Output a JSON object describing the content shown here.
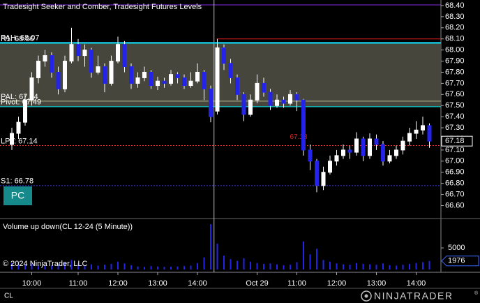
{
  "chart_data": {
    "type": "candlestick",
    "title": "Tradesight Seeker and Comber, Tradesight Futures Levels",
    "volume_title": "Volume up down(CL 12-24 (5 Minute))",
    "copyright": "© 2024 NinjaTrader, LLC",
    "button": "PC",
    "instrument": "CL",
    "brand": "NINJATRADER",
    "brand_mark": "®",
    "categories": [
      null,
      null,
      null,
      "10:00",
      null,
      null,
      null,
      null,
      null,
      null,
      "11:00",
      null,
      null,
      null,
      null,
      null,
      "12:00",
      null,
      null,
      null,
      null,
      null,
      "13:00",
      null,
      null,
      null,
      null,
      null,
      "14:00",
      null,
      null,
      null,
      null,
      null,
      null,
      null,
      null,
      "Oct 29",
      null,
      null,
      null,
      null,
      null,
      "11:00",
      null,
      null,
      null,
      null,
      null,
      "12:00",
      null,
      null,
      null,
      null,
      null,
      "13:00",
      null,
      null,
      null,
      null,
      null,
      "14:00",
      null,
      null
    ],
    "open": [
      67.15,
      67.25,
      67.35,
      67.55,
      67.75,
      67.9,
      67.95,
      67.8,
      67.65,
      67.9,
      68.05,
      67.95,
      68.0,
      67.8,
      67.85,
      67.7,
      67.9,
      68.05,
      67.85,
      67.7,
      67.75,
      67.8,
      67.68,
      67.72,
      67.7,
      67.78,
      67.75,
      67.68,
      67.72,
      67.8,
      67.65,
      67.45,
      68.02,
      67.88,
      67.75,
      67.6,
      67.42,
      67.55,
      67.7,
      67.62,
      67.5,
      67.55,
      67.52,
      67.6,
      67.55,
      67.1,
      67.0,
      66.78,
      66.9,
      67.0,
      67.05,
      67.1,
      67.08,
      67.2,
      67.05,
      67.2,
      67.15,
      67.0,
      67.05,
      67.1,
      67.18,
      67.25,
      67.28,
      67.32
    ],
    "high": [
      67.3,
      67.4,
      67.6,
      67.8,
      67.95,
      68.0,
      67.98,
      67.85,
      67.95,
      68.2,
      68.1,
      68.05,
      68.02,
      67.95,
      67.88,
      67.95,
      68.12,
      68.08,
      67.88,
      67.8,
      67.85,
      67.82,
      67.76,
      67.75,
      67.82,
      67.8,
      67.78,
      67.8,
      67.88,
      67.82,
      67.68,
      68.1,
      68.05,
      67.92,
      67.78,
      67.62,
      67.6,
      67.78,
      67.75,
      67.65,
      67.6,
      67.58,
      67.64,
      67.62,
      67.56,
      67.15,
      67.02,
      66.95,
      67.05,
      67.1,
      67.15,
      67.14,
      67.26,
      67.22,
      67.25,
      67.24,
      67.18,
      67.1,
      67.14,
      67.22,
      67.3,
      67.36,
      67.4,
      67.34
    ],
    "low": [
      67.1,
      67.2,
      67.32,
      67.5,
      67.7,
      67.85,
      67.75,
      67.6,
      67.62,
      67.88,
      67.9,
      67.85,
      67.75,
      67.78,
      67.62,
      67.68,
      67.88,
      67.8,
      67.65,
      67.66,
      67.72,
      67.65,
      67.64,
      67.66,
      67.68,
      67.7,
      67.65,
      67.66,
      67.7,
      67.55,
      67.35,
      67.42,
      67.82,
      67.7,
      67.55,
      67.36,
      67.4,
      67.52,
      67.58,
      67.46,
      67.48,
      67.48,
      67.5,
      67.45,
      67.05,
      66.92,
      66.72,
      66.74,
      66.88,
      66.96,
      67.02,
      67.02,
      67.05,
      67.0,
      67.02,
      67.1,
      66.96,
      66.98,
      67.02,
      67.06,
      67.14,
      67.2,
      67.24,
      67.12
    ],
    "close": [
      67.25,
      67.35,
      67.55,
      67.75,
      67.9,
      67.95,
      67.8,
      67.65,
      67.9,
      68.05,
      67.95,
      68.0,
      67.8,
      67.85,
      67.7,
      67.9,
      68.05,
      67.85,
      67.7,
      67.75,
      67.8,
      67.68,
      67.72,
      67.7,
      67.78,
      67.75,
      67.68,
      67.72,
      67.8,
      67.65,
      67.4,
      68.02,
      67.88,
      67.75,
      67.6,
      67.42,
      67.55,
      67.7,
      67.62,
      67.5,
      67.55,
      67.52,
      67.6,
      67.55,
      67.1,
      67.0,
      66.78,
      66.9,
      67.0,
      67.05,
      67.1,
      67.08,
      67.2,
      67.05,
      67.2,
      67.15,
      67.0,
      67.05,
      67.1,
      67.18,
      67.25,
      67.28,
      67.32,
      67.18
    ],
    "volume": [
      1500,
      1800,
      1200,
      1400,
      1100,
      900,
      1000,
      1300,
      1600,
      2200,
      1400,
      1000,
      1200,
      900,
      1100,
      1300,
      1800,
      1400,
      1000,
      700,
      600,
      800,
      700,
      600,
      650,
      700,
      800,
      900,
      1500,
      2800,
      10500,
      6000,
      3200,
      2400,
      2000,
      2600,
      1800,
      1500,
      1300,
      1400,
      1200,
      1000,
      1100,
      1700,
      6500,
      3500,
      4800,
      2200,
      1800,
      1400,
      1200,
      1100,
      1500,
      1300,
      1200,
      1100,
      1400,
      1000,
      900,
      1100,
      1300,
      1500,
      1700,
      1976
    ],
    "up_color": "#ffffff",
    "down_color": "#2424e8",
    "ylim": [
      66.49,
      68.45
    ],
    "yticks": [
      {
        "value": 66.6,
        "label": "66.60"
      },
      {
        "value": 66.7,
        "label": "66.70"
      },
      {
        "value": 66.8,
        "label": "66.80"
      },
      {
        "value": 66.9,
        "label": "66.90"
      },
      {
        "value": 67,
        "label": "67.00"
      },
      {
        "value": 67.1,
        "label": "67.10"
      },
      {
        "value": 67.2,
        "label": "67.20"
      },
      {
        "value": 67.3,
        "label": "67.30"
      },
      {
        "value": 67.4,
        "label": "67.40"
      },
      {
        "value": 67.5,
        "label": "67.50"
      },
      {
        "value": 67.6,
        "label": "67.60"
      },
      {
        "value": 67.7,
        "label": "67.70"
      },
      {
        "value": 67.8,
        "label": "67.80"
      },
      {
        "value": 67.9,
        "label": "67.90"
      },
      {
        "value": 68,
        "label": "68.00"
      },
      {
        "value": 68.1,
        "label": "68.10"
      },
      {
        "value": 68.2,
        "label": "68.20"
      },
      {
        "value": 68.3,
        "label": "68.30"
      },
      {
        "value": 68.4,
        "label": "68.40"
      }
    ],
    "y2lim": [
      0,
      11000
    ],
    "y2ticks": [
      5000
    ],
    "last_price": 67.18,
    "last_volume": 1976,
    "band": {
      "from": 67.49,
      "to": 68.07,
      "color": "#4e4e44"
    },
    "levels": [
      {
        "label": "PAH: 68.07",
        "value": 68.07,
        "color": "#00c8ff",
        "dashed": false
      },
      {
        "label": "R1: 68.06",
        "value": 68.06,
        "color": "#00e5ee",
        "dashed": false
      },
      {
        "label": "PAL: 67.54",
        "value": 67.54,
        "color": "#b8b890",
        "dashed": false
      },
      {
        "label": "Pivot: 67.49",
        "value": 67.49,
        "color": "#00e5ee",
        "dashed": false
      },
      {
        "label": "LPT: 67.14",
        "value": 67.14,
        "color": "#ff3030",
        "dashed": true
      },
      {
        "label": "S1: 66.78",
        "value": 66.78,
        "color": "#3a3aff",
        "dashed": true
      }
    ],
    "session_level": {
      "value": 68.1,
      "color": "#e02020"
    },
    "marker_value": 67.18
  }
}
